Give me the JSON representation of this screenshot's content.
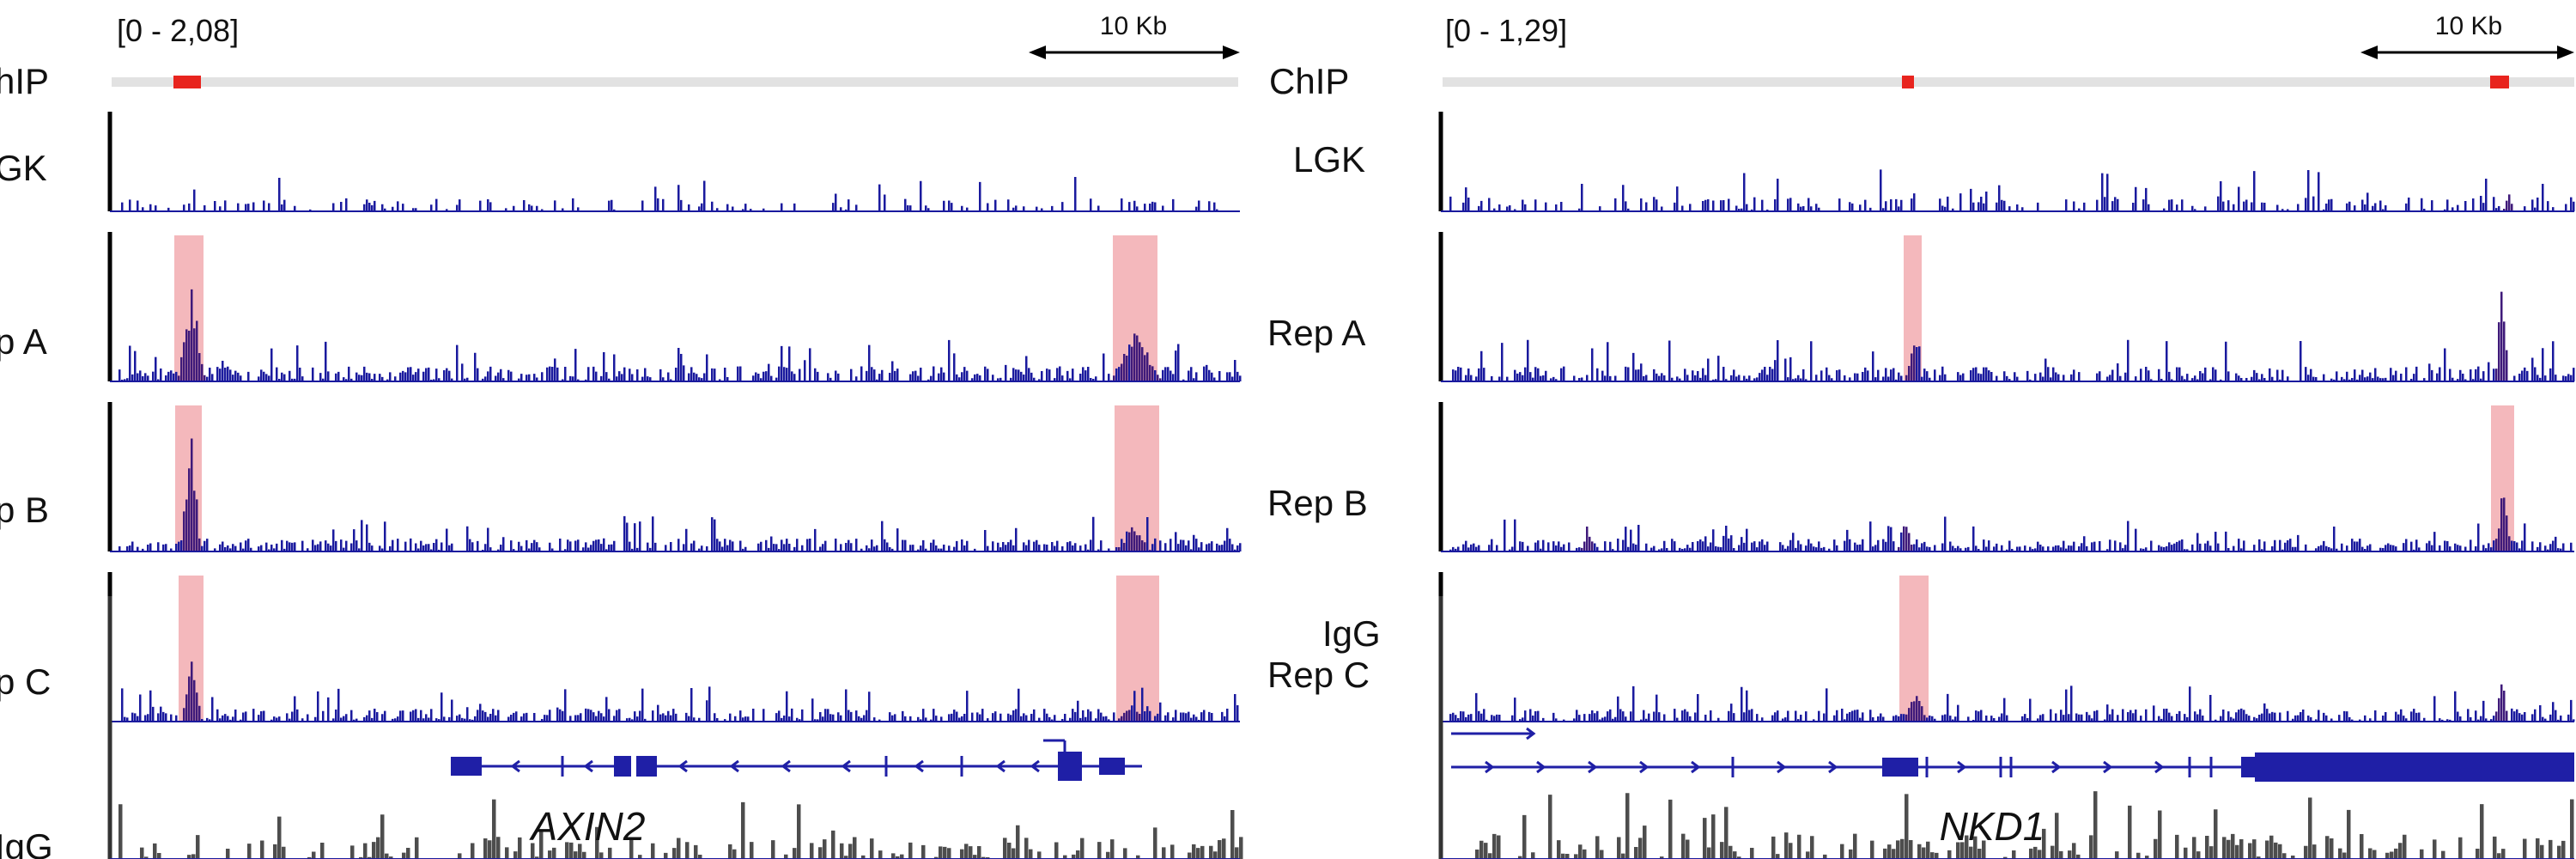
{
  "colors": {
    "signal": "#1a1a9e",
    "peak": "#3f1a7a",
    "igg": "#4d4d4d",
    "highlight": "#f4b8bc",
    "chip_peak": "#e8241e",
    "chip_bar": "#e2e2e2",
    "gene_model": "#1f1fa6",
    "scale_axis": "#000000"
  },
  "panels": [
    {
      "range_label": "[0 - 2,08]",
      "scale_label": "10 Kb",
      "gene_name": "AXIN2",
      "tracks": [
        {
          "label": "hIP",
          "type": "chip"
        },
        {
          "label": "GK",
          "type": "signal"
        },
        {
          "label": "p A",
          "type": "signal"
        },
        {
          "label": "p B",
          "type": "signal"
        },
        {
          "label": "p C",
          "type": "signal"
        },
        {
          "label": "IgG",
          "type": "igg"
        }
      ]
    },
    {
      "range_label": "[0 - 1,29]",
      "scale_label": "10 Kb",
      "gene_name": "NKD1",
      "tracks": [
        {
          "label": "ChIP",
          "type": "chip"
        },
        {
          "label": "LGK",
          "type": "signal"
        },
        {
          "label": "Rep A",
          "type": "signal"
        },
        {
          "label": "Rep B",
          "type": "signal"
        },
        {
          "label": "Rep C",
          "type": "signal"
        },
        {
          "label": "IgG",
          "type": "igg"
        }
      ]
    }
  ]
}
